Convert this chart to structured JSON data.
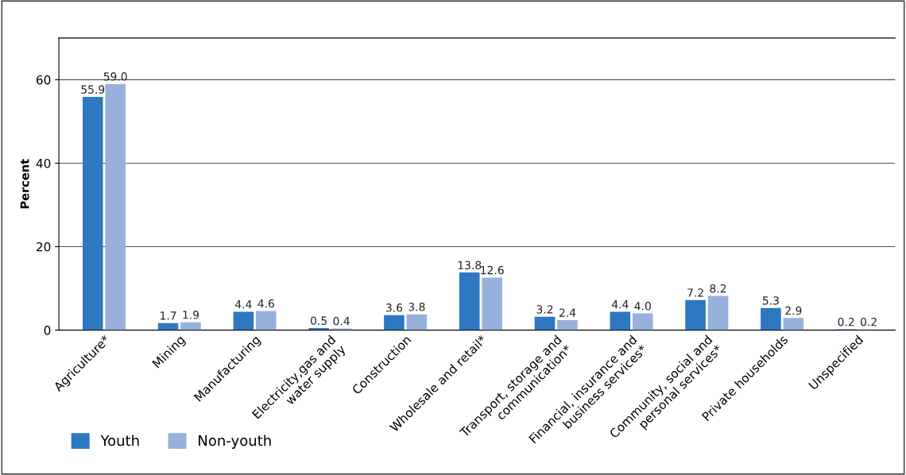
{
  "chart_data": {
    "type": "bar",
    "ylabel": "Percent",
    "categories": [
      "Agriculture*",
      "Mining",
      "Manufacturing",
      "Electricity,gas and\nwater supply",
      "Construction",
      "Wholesale and retail*",
      "Transport, storage and\ncommunication*",
      "Financial, insurance and\nbusiness services*",
      "Community, social and\npersonal services*",
      "Private households",
      "Unspecified"
    ],
    "series": [
      {
        "name": "Youth",
        "color": "#2e78c2",
        "values": [
          55.9,
          1.7,
          4.4,
          0.5,
          3.6,
          13.8,
          3.2,
          4.4,
          7.2,
          5.3,
          0.2
        ],
        "value_labels": [
          "55.9",
          "1.7",
          "4.4",
          "0.5",
          "3.6",
          "13.8",
          "3.2",
          "4.4",
          "7.2",
          "5.3",
          "0.2"
        ]
      },
      {
        "name": "Non-youth",
        "color": "#98b0dc",
        "values": [
          59.0,
          1.9,
          4.6,
          0.4,
          3.8,
          12.6,
          2.4,
          4.0,
          8.2,
          2.9,
          0.2
        ],
        "value_labels": [
          "59.0",
          "1.9",
          "4.6",
          "0.4",
          "3.8",
          "12.6",
          "2.4",
          "4.0",
          "8.2",
          "2.9",
          "0.2"
        ]
      }
    ],
    "ylim": [
      0,
      70
    ],
    "yticks": [
      0,
      20,
      40,
      60
    ],
    "grid": "y",
    "legend": "bottom left"
  }
}
